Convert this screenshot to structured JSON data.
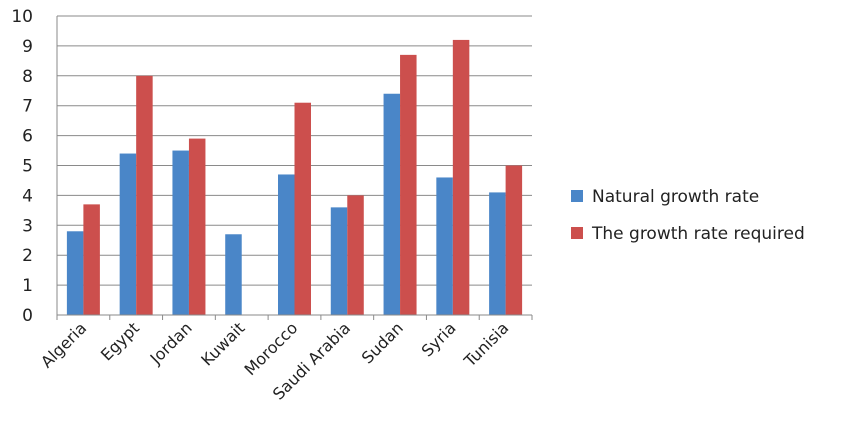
{
  "chart_data": {
    "type": "bar",
    "title": "",
    "xlabel": "",
    "ylabel": "",
    "ylim": [
      0,
      10
    ],
    "yticks": [
      0,
      1,
      2,
      3,
      4,
      5,
      6,
      7,
      8,
      9,
      10
    ],
    "grid": true,
    "legend_position": "right",
    "categories": [
      "Algeria",
      "Egypt",
      "Jordan",
      "Kuwait",
      "Morocco",
      "Saudi Arabia",
      "Sudan",
      "Syria",
      "Tunisia"
    ],
    "series": [
      {
        "name": "Natural growth rate",
        "color": "#4a86c8",
        "values": [
          2.8,
          5.4,
          5.5,
          2.7,
          4.7,
          3.6,
          7.4,
          4.6,
          4.1
        ]
      },
      {
        "name": "The growth rate required",
        "color": "#cc4f4d",
        "values": [
          3.7,
          8.0,
          5.9,
          null,
          7.1,
          4.0,
          8.7,
          9.2,
          5.0
        ]
      }
    ]
  }
}
